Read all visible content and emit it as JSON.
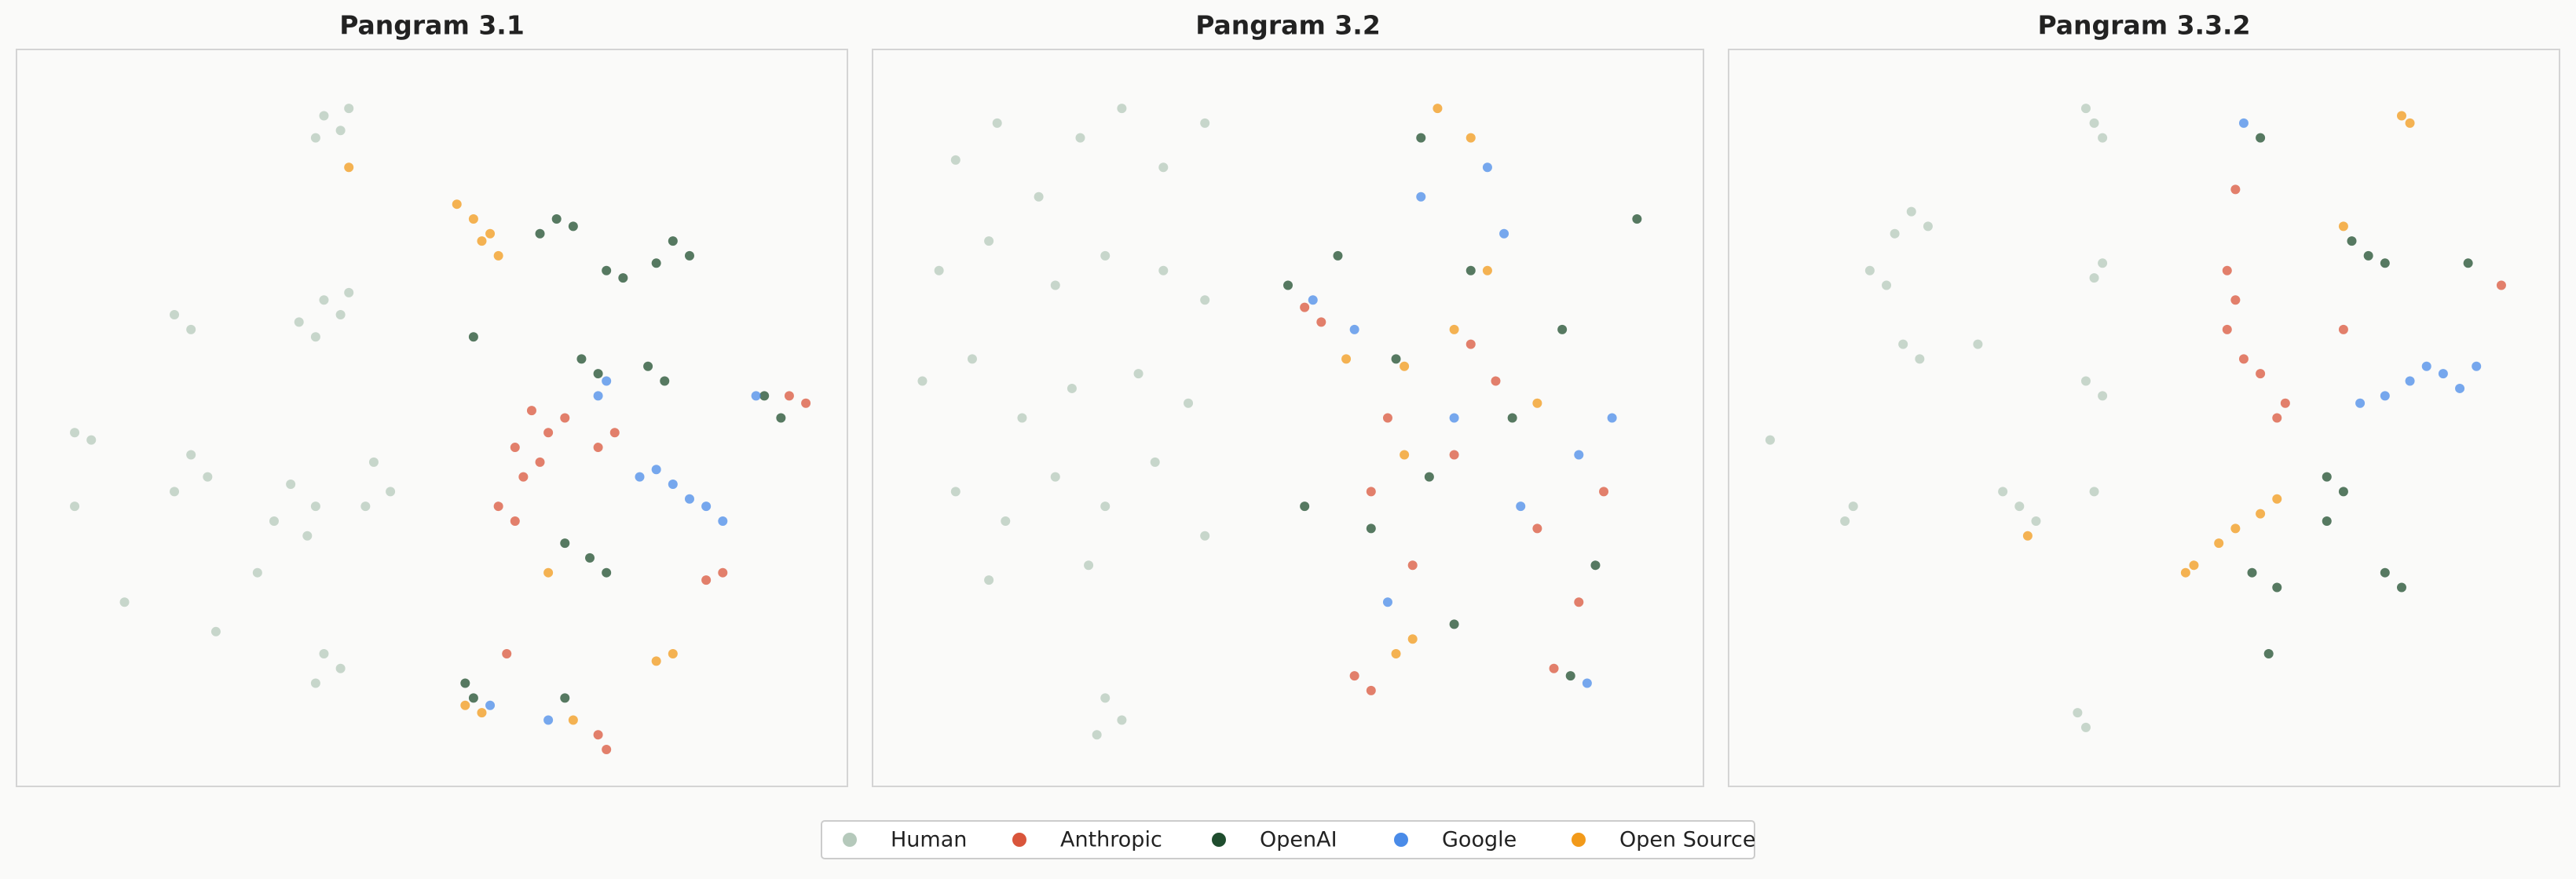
{
  "chart_data": [
    {
      "type": "scatter",
      "title": "Pangram 3.1",
      "xlim": [
        0,
        100
      ],
      "ylim": [
        0,
        100
      ],
      "series": [
        {
          "name": "Human",
          "color": "#b5c9bb",
          "x": [
            37,
            39,
            36,
            40,
            37,
            39,
            36,
            40,
            34,
            19,
            21,
            7,
            9,
            21,
            23,
            19,
            33,
            36,
            31,
            35,
            43,
            45,
            42,
            37,
            39,
            36,
            13,
            7,
            24,
            29
          ],
          "y": [
            91,
            89,
            88,
            92,
            66,
            64,
            61,
            67,
            63,
            64,
            62,
            48,
            47,
            45,
            42,
            40,
            41,
            38,
            36,
            34,
            44,
            40,
            38,
            18,
            16,
            14,
            25,
            38,
            21,
            29
          ]
        },
        {
          "name": "Anthropic",
          "color": "#d9553b",
          "x": [
            62,
            64,
            60,
            63,
            61,
            58,
            60,
            66,
            72,
            70,
            83,
            85,
            70,
            71,
            59,
            93,
            95
          ],
          "y": [
            51,
            48,
            46,
            44,
            42,
            38,
            36,
            50,
            48,
            46,
            28,
            29,
            7,
            5,
            18,
            53,
            52
          ]
        },
        {
          "name": "OpenAI",
          "color": "#1f4d2e",
          "x": [
            65,
            63,
            67,
            79,
            81,
            77,
            71,
            73,
            68,
            70,
            76,
            78,
            66,
            69,
            71,
            90,
            92,
            54,
            55,
            66,
            55
          ],
          "y": [
            77,
            75,
            76,
            74,
            72,
            71,
            70,
            69,
            58,
            56,
            57,
            55,
            33,
            31,
            29,
            53,
            50,
            14,
            12,
            12,
            61
          ]
        },
        {
          "name": "Google",
          "color": "#4a8be8",
          "x": [
            79,
            81,
            77,
            75,
            83,
            85,
            71,
            70,
            89,
            64,
            57
          ],
          "y": [
            41,
            39,
            43,
            42,
            38,
            36,
            55,
            53,
            53,
            9,
            11
          ]
        },
        {
          "name": "Open Source",
          "color": "#f29a1a",
          "x": [
            53,
            55,
            57,
            58,
            56,
            77,
            79,
            54,
            56,
            64,
            67,
            40
          ],
          "y": [
            79,
            77,
            75,
            72,
            74,
            17,
            18,
            11,
            10,
            29,
            9,
            84
          ]
        }
      ]
    },
    {
      "type": "scatter",
      "title": "Pangram 3.2",
      "xlim": [
        0,
        100
      ],
      "ylim": [
        0,
        100
      ],
      "series": [
        {
          "name": "Human",
          "color": "#b5c9bb",
          "x": [
            10,
            15,
            20,
            25,
            30,
            35,
            40,
            8,
            14,
            22,
            28,
            35,
            40,
            6,
            12,
            18,
            24,
            32,
            38,
            10,
            16,
            22,
            28,
            34,
            40,
            14,
            26,
            28,
            30,
            27
          ],
          "y": [
            85,
            90,
            80,
            88,
            92,
            84,
            90,
            70,
            74,
            68,
            72,
            70,
            66,
            55,
            58,
            50,
            54,
            56,
            52,
            40,
            36,
            42,
            38,
            44,
            34,
            28,
            30,
            12,
            9,
            7
          ]
        },
        {
          "name": "Anthropic",
          "color": "#d9553b",
          "x": [
            52,
            54,
            60,
            65,
            70,
            75,
            80,
            85,
            88,
            58,
            60,
            82,
            72,
            62
          ],
          "y": [
            65,
            63,
            40,
            30,
            45,
            55,
            35,
            25,
            40,
            15,
            13,
            16,
            60,
            50
          ]
        },
        {
          "name": "OpenAI",
          "color": "#1f4d2e",
          "x": [
            50,
            56,
            63,
            67,
            72,
            77,
            83,
            87,
            92,
            60,
            70,
            84,
            52,
            66
          ],
          "y": [
            68,
            72,
            58,
            42,
            70,
            50,
            62,
            30,
            77,
            35,
            22,
            15,
            38,
            88
          ]
        },
        {
          "name": "Google",
          "color": "#4a8be8",
          "x": [
            53,
            66,
            74,
            78,
            85,
            89,
            70,
            62,
            86,
            58,
            76
          ],
          "y": [
            66,
            80,
            84,
            38,
            45,
            50,
            50,
            25,
            14,
            62,
            75
          ]
        },
        {
          "name": "Open Source",
          "color": "#f29a1a",
          "x": [
            64,
            70,
            74,
            72,
            57,
            64,
            65,
            63,
            80,
            68
          ],
          "y": [
            57,
            62,
            70,
            88,
            58,
            45,
            20,
            18,
            52,
            92
          ]
        }
      ]
    },
    {
      "type": "scatter",
      "title": "Pangram 3.3.2",
      "xlim": [
        0,
        100
      ],
      "ylim": [
        0,
        100
      ],
      "series": [
        {
          "name": "Human",
          "color": "#b5c9bb",
          "x": [
            44,
            45,
            43,
            22,
            24,
            20,
            17,
            19,
            21,
            23,
            45,
            44,
            45,
            43,
            35,
            37,
            33,
            14,
            15,
            5,
            42,
            43,
            44,
            30
          ],
          "y": [
            90,
            88,
            92,
            78,
            76,
            75,
            70,
            68,
            60,
            58,
            71,
            69,
            53,
            55,
            38,
            36,
            40,
            36,
            38,
            47,
            10,
            8,
            40,
            60
          ]
        },
        {
          "name": "Anthropic",
          "color": "#d9553b",
          "x": [
            60,
            61,
            60,
            62,
            64,
            67,
            66,
            74,
            93,
            61
          ],
          "y": [
            70,
            66,
            62,
            58,
            56,
            52,
            50,
            62,
            68,
            81
          ]
        },
        {
          "name": "OpenAI",
          "color": "#1f4d2e",
          "x": [
            77,
            75,
            79,
            64,
            72,
            74,
            63,
            66,
            79,
            81,
            72,
            65,
            89
          ],
          "y": [
            72,
            74,
            71,
            88,
            42,
            40,
            29,
            27,
            29,
            27,
            36,
            18,
            71
          ]
        },
        {
          "name": "Google",
          "color": "#4a8be8",
          "x": [
            86,
            88,
            84,
            82,
            79,
            76,
            90,
            62
          ],
          "y": [
            56,
            54,
            57,
            55,
            53,
            52,
            57,
            90
          ]
        },
        {
          "name": "Open Source",
          "color": "#f29a1a",
          "x": [
            61,
            59,
            56,
            55,
            64,
            66,
            81,
            82,
            74,
            36
          ],
          "y": [
            35,
            33,
            30,
            29,
            37,
            39,
            91,
            90,
            76,
            34
          ]
        }
      ]
    }
  ]
}
